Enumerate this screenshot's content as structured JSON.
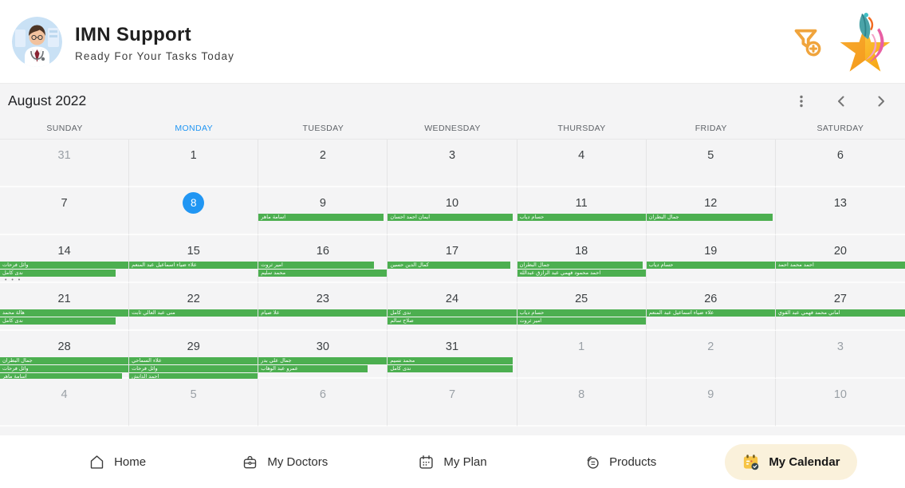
{
  "header": {
    "title": "IMN Support",
    "subtitle": "Ready For Your Tasks Today"
  },
  "colors": {
    "accent_blue": "#2196F3",
    "event_green": "#4CAF50",
    "icon_amber": "#F0A43C",
    "active_pill_bg": "#FAF1DB",
    "calendar_bg": "#f4f4f5"
  },
  "calendar": {
    "month_title": "August 2022",
    "weekdays": [
      "SUNDAY",
      "MONDAY",
      "TUESDAY",
      "WEDNESDAY",
      "THURSDAY",
      "FRIDAY",
      "SATURDAY"
    ],
    "active_weekday": "MONDAY",
    "today": "8",
    "more_indicator": "• • •",
    "weeks": [
      {
        "days": [
          {
            "n": "31",
            "muted": true
          },
          {
            "n": "1"
          },
          {
            "n": "2"
          },
          {
            "n": "3"
          },
          {
            "n": "4"
          },
          {
            "n": "5"
          },
          {
            "n": "6"
          }
        ]
      },
      {
        "days": [
          {
            "n": "7"
          },
          {
            "n": "8",
            "today": true
          },
          {
            "n": "9",
            "events": [
              {
                "label": "اسامة ماهر",
                "width_pct": 97
              }
            ]
          },
          {
            "n": "10",
            "events": [
              {
                "label": "ايمان احمد احسان",
                "width_pct": 97
              }
            ]
          },
          {
            "n": "11",
            "events": [
              {
                "label": "حسام دياب",
                "width_pct": 100
              }
            ]
          },
          {
            "n": "12",
            "events": [
              {
                "label": "جمال البطران",
                "width_pct": 98
              }
            ]
          },
          {
            "n": "13"
          }
        ]
      },
      {
        "days": [
          {
            "n": "14",
            "events": [
              {
                "label": "وائل فرحات",
                "width_pct": 100
              },
              {
                "label": "ندى كامل",
                "width_pct": 90
              }
            ],
            "more": true
          },
          {
            "n": "15",
            "events": [
              {
                "label": "علاء ضياء اسماعيل عبد المنعم",
                "width_pct": 100
              }
            ]
          },
          {
            "n": "16",
            "events": [
              {
                "label": "امير ثروت",
                "width_pct": 90
              },
              {
                "label": "محمد سليم",
                "width_pct": 100
              }
            ]
          },
          {
            "n": "17",
            "events": [
              {
                "label": "كمال الدين حسين",
                "width_pct": 95
              }
            ]
          },
          {
            "n": "18",
            "events": [
              {
                "label": "جمال البطران",
                "width_pct": 98
              },
              {
                "label": "احمد محمود فهمي عبد الرازق عبدالله",
                "width_pct": 100
              }
            ]
          },
          {
            "n": "19",
            "events": [
              {
                "label": "حسام دياب",
                "width_pct": 100
              }
            ]
          },
          {
            "n": "20",
            "events": [
              {
                "label": "احمد محمد احمد",
                "width_pct": 100
              }
            ]
          }
        ]
      },
      {
        "days": [
          {
            "n": "21",
            "events": [
              {
                "label": "هالة محمد",
                "width_pct": 100
              },
              {
                "label": "ندى كامل",
                "width_pct": 90
              }
            ]
          },
          {
            "n": "22",
            "events": [
              {
                "label": "منى عبد العالي ثابت",
                "width_pct": 100
              }
            ]
          },
          {
            "n": "23",
            "events": [
              {
                "label": "علا صيام",
                "width_pct": 100
              }
            ]
          },
          {
            "n": "24",
            "events": [
              {
                "label": "ندى كامل",
                "width_pct": 100
              },
              {
                "label": "صلاح سالم",
                "width_pct": 100
              }
            ]
          },
          {
            "n": "25",
            "events": [
              {
                "label": "حسام دياب",
                "width_pct": 100
              },
              {
                "label": "امير ثروت",
                "width_pct": 100
              }
            ]
          },
          {
            "n": "26",
            "events": [
              {
                "label": "علاء ضياء اسماعيل عبد المنعم",
                "width_pct": 100
              }
            ]
          },
          {
            "n": "27",
            "events": [
              {
                "label": "اماني محمد فهمي عبد القوي",
                "width_pct": 100
              }
            ]
          }
        ]
      },
      {
        "days": [
          {
            "n": "28",
            "events": [
              {
                "label": "جمال البطران",
                "width_pct": 100
              },
              {
                "label": "وائل فرحات",
                "width_pct": 100
              },
              {
                "label": "اسامة ماهر",
                "width_pct": 95
              }
            ]
          },
          {
            "n": "29",
            "events": [
              {
                "label": "علاء السماحي",
                "width_pct": 100
              },
              {
                "label": "وائل فرحات",
                "width_pct": 100
              },
              {
                "label": "احمد الدانش",
                "width_pct": 100
              }
            ]
          },
          {
            "n": "30",
            "events": [
              {
                "label": "جمال علي بدر",
                "width_pct": 100
              },
              {
                "label": "عمرو عبد الوهاب",
                "width_pct": 85
              }
            ]
          },
          {
            "n": "31",
            "events": [
              {
                "label": "محمد نسيم",
                "width_pct": 97
              },
              {
                "label": "ندى كامل",
                "width_pct": 97
              }
            ]
          },
          {
            "n": "1",
            "muted": true
          },
          {
            "n": "2",
            "muted": true
          },
          {
            "n": "3",
            "muted": true
          }
        ]
      },
      {
        "days": [
          {
            "n": "4",
            "muted": true
          },
          {
            "n": "5",
            "muted": true
          },
          {
            "n": "6",
            "muted": true
          },
          {
            "n": "7",
            "muted": true
          },
          {
            "n": "8",
            "muted": true
          },
          {
            "n": "9",
            "muted": true
          },
          {
            "n": "10",
            "muted": true
          }
        ]
      }
    ]
  },
  "bottom_nav": {
    "items": [
      {
        "label": "Home",
        "icon": "home-icon",
        "active": false
      },
      {
        "label": "My Doctors",
        "icon": "doctor-bag-icon",
        "active": false
      },
      {
        "label": "My Plan",
        "icon": "calendar-icon",
        "active": false
      },
      {
        "label": "Products",
        "icon": "products-icon",
        "active": false
      },
      {
        "label": "My Calendar",
        "icon": "calendar-check-icon",
        "active": true
      }
    ]
  }
}
